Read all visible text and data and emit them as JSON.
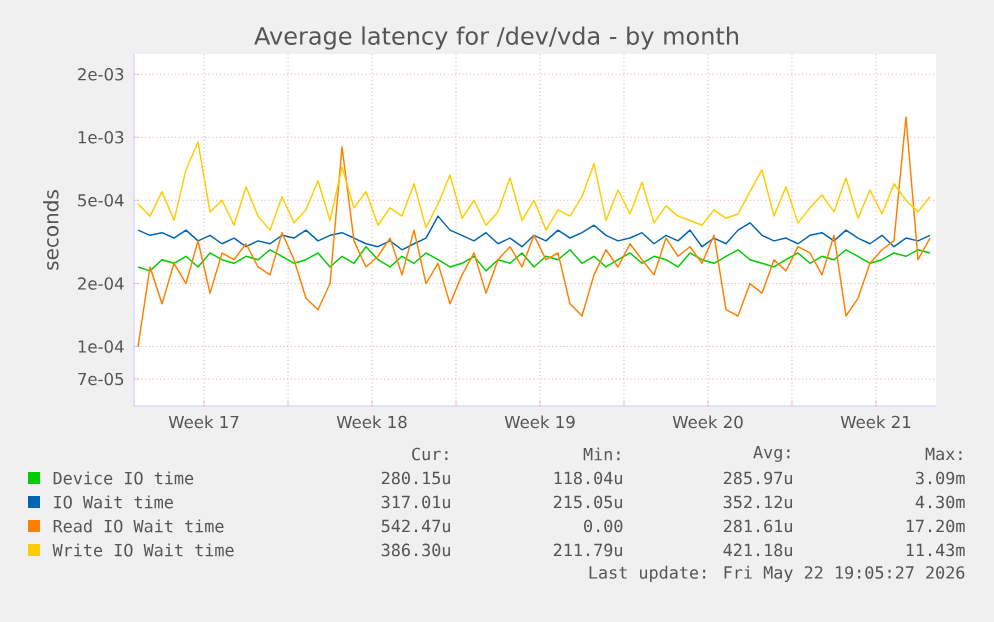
{
  "chart_data": {
    "type": "line",
    "title": "Average latency for /dev/vda - by month",
    "ylabel": "seconds",
    "log": true,
    "grid": true,
    "legend": "bottom",
    "xlim": [
      "2026-04-20T14:00",
      "2026-05-24T00:00"
    ],
    "ylim": [
      5.2e-05,
      0.0025
    ],
    "yticks": [
      {
        "value": 7e-05,
        "label": "7e-05"
      },
      {
        "value": 0.0001,
        "label": "1e-04"
      },
      {
        "value": 0.0002,
        "label": "2e-04"
      },
      {
        "value": 0.0005,
        "label": "5e-04"
      },
      {
        "value": 0.001,
        "label": "1e-03"
      },
      {
        "value": 0.002,
        "label": "2e-03"
      }
    ],
    "xticks": [
      {
        "value": "2026-04-23T12:00",
        "label": "Week 17"
      },
      {
        "value": "2026-04-27T00:00",
        "label": null
      },
      {
        "value": "2026-04-30T12:00",
        "label": "Week 18"
      },
      {
        "value": "2026-05-04T00:00",
        "label": null
      },
      {
        "value": "2026-05-07T12:00",
        "label": "Week 19"
      },
      {
        "value": "2026-05-11T00:00",
        "label": null
      },
      {
        "value": "2026-05-14T12:00",
        "label": "Week 20"
      },
      {
        "value": "2026-05-18T00:00",
        "label": null
      },
      {
        "value": "2026-05-21T12:00",
        "label": "Week 21"
      }
    ],
    "x": [
      "2026-04-20T18:00",
      "2026-04-21T06:00",
      "2026-04-21T18:00",
      "2026-04-22T06:00",
      "2026-04-22T18:00",
      "2026-04-23T06:00",
      "2026-04-23T18:00",
      "2026-04-24T06:00",
      "2026-04-24T18:00",
      "2026-04-25T06:00",
      "2026-04-25T18:00",
      "2026-04-26T06:00",
      "2026-04-26T18:00",
      "2026-04-27T06:00",
      "2026-04-27T18:00",
      "2026-04-28T06:00",
      "2026-04-28T18:00",
      "2026-04-29T06:00",
      "2026-04-29T18:00",
      "2026-04-30T06:00",
      "2026-04-30T18:00",
      "2026-05-01T06:00",
      "2026-05-01T18:00",
      "2026-05-02T06:00",
      "2026-05-02T18:00",
      "2026-05-03T06:00",
      "2026-05-03T18:00",
      "2026-05-04T06:00",
      "2026-05-04T18:00",
      "2026-05-05T06:00",
      "2026-05-05T18:00",
      "2026-05-06T06:00",
      "2026-05-06T18:00",
      "2026-05-07T06:00",
      "2026-05-07T18:00",
      "2026-05-08T06:00",
      "2026-05-08T18:00",
      "2026-05-09T06:00",
      "2026-05-09T18:00",
      "2026-05-10T06:00",
      "2026-05-10T18:00",
      "2026-05-11T06:00",
      "2026-05-11T18:00",
      "2026-05-12T06:00",
      "2026-05-12T18:00",
      "2026-05-13T06:00",
      "2026-05-13T18:00",
      "2026-05-14T06:00",
      "2026-05-14T18:00",
      "2026-05-15T06:00",
      "2026-05-15T18:00",
      "2026-05-16T06:00",
      "2026-05-16T18:00",
      "2026-05-17T06:00",
      "2026-05-17T18:00",
      "2026-05-18T06:00",
      "2026-05-18T18:00",
      "2026-05-19T06:00",
      "2026-05-19T18:00",
      "2026-05-20T06:00",
      "2026-05-20T18:00",
      "2026-05-21T06:00",
      "2026-05-21T18:00",
      "2026-05-22T06:00",
      "2026-05-22T18:00",
      "2026-05-23T06:00",
      "2026-05-23T18:00"
    ],
    "series": [
      {
        "name": "Device IO time",
        "color": "#00cc00",
        "values": [
          0.00024,
          0.00023,
          0.00026,
          0.00025,
          0.00027,
          0.00024,
          0.00028,
          0.00026,
          0.00025,
          0.00027,
          0.00026,
          0.00029,
          0.00027,
          0.00025,
          0.00026,
          0.00028,
          0.00024,
          0.00027,
          0.00025,
          0.0003,
          0.00026,
          0.00024,
          0.00027,
          0.00025,
          0.00028,
          0.00026,
          0.00024,
          0.00025,
          0.00027,
          0.00023,
          0.00026,
          0.00025,
          0.00028,
          0.00024,
          0.00027,
          0.00026,
          0.00029,
          0.00025,
          0.00027,
          0.00024,
          0.00026,
          0.00028,
          0.00025,
          0.00027,
          0.00026,
          0.00024,
          0.00028,
          0.00026,
          0.00025,
          0.00027,
          0.00029,
          0.00026,
          0.00025,
          0.00024,
          0.00026,
          0.00028,
          0.00025,
          0.00027,
          0.00026,
          0.00029,
          0.00027,
          0.00025,
          0.00026,
          0.00028,
          0.00027,
          0.00029,
          0.00028
        ]
      },
      {
        "name": "IO Wait time",
        "color": "#0066b3",
        "values": [
          0.00036,
          0.00034,
          0.00035,
          0.00033,
          0.00036,
          0.00032,
          0.00034,
          0.00031,
          0.00033,
          0.0003,
          0.00032,
          0.00031,
          0.00034,
          0.00033,
          0.00036,
          0.00032,
          0.00034,
          0.00035,
          0.00033,
          0.00031,
          0.0003,
          0.00032,
          0.00029,
          0.00031,
          0.00033,
          0.00042,
          0.00036,
          0.00034,
          0.00032,
          0.00035,
          0.00031,
          0.00033,
          0.0003,
          0.00034,
          0.00032,
          0.00036,
          0.00033,
          0.00035,
          0.00038,
          0.00034,
          0.00032,
          0.00033,
          0.00035,
          0.00031,
          0.00034,
          0.00032,
          0.00036,
          0.0003,
          0.00033,
          0.00031,
          0.00036,
          0.00039,
          0.00034,
          0.00032,
          0.00033,
          0.00031,
          0.00034,
          0.00035,
          0.00032,
          0.00036,
          0.00033,
          0.00031,
          0.00034,
          0.0003,
          0.00033,
          0.00032,
          0.00034
        ]
      },
      {
        "name": "Read IO Wait time",
        "color": "#ff8000",
        "values": [
          0.0001,
          0.00024,
          0.00016,
          0.00025,
          0.0002,
          0.00032,
          0.00018,
          0.00028,
          0.00026,
          0.00031,
          0.00024,
          0.00022,
          0.00035,
          0.00026,
          0.00017,
          0.00015,
          0.0002,
          0.0009,
          0.00032,
          0.00024,
          0.00027,
          0.00033,
          0.00022,
          0.00036,
          0.0002,
          0.00025,
          0.00016,
          0.00022,
          0.00028,
          0.00018,
          0.00026,
          0.0003,
          0.00024,
          0.00034,
          0.00026,
          0.00028,
          0.00016,
          0.00014,
          0.00022,
          0.00029,
          0.00024,
          0.00031,
          0.00026,
          0.00022,
          0.00033,
          0.00027,
          0.0003,
          0.00025,
          0.00034,
          0.00015,
          0.00014,
          0.0002,
          0.00018,
          0.00026,
          0.00023,
          0.0003,
          0.00028,
          0.00022,
          0.00034,
          0.00014,
          0.00017,
          0.00025,
          0.00029,
          0.00032,
          0.00125,
          0.00026,
          0.00033
        ]
      },
      {
        "name": "Write IO Wait time",
        "color": "#ffcc00",
        "values": [
          0.00048,
          0.00042,
          0.00055,
          0.0004,
          0.0007,
          0.00095,
          0.00044,
          0.0005,
          0.00038,
          0.00058,
          0.00042,
          0.00036,
          0.00052,
          0.00039,
          0.00045,
          0.00062,
          0.0004,
          0.00072,
          0.00046,
          0.00055,
          0.00038,
          0.00046,
          0.00042,
          0.0006,
          0.00037,
          0.00048,
          0.00066,
          0.00041,
          0.0005,
          0.00038,
          0.00044,
          0.00064,
          0.0004,
          0.0005,
          0.00036,
          0.00045,
          0.00042,
          0.00052,
          0.00075,
          0.0004,
          0.00056,
          0.00043,
          0.00061,
          0.00039,
          0.00047,
          0.00042,
          0.0004,
          0.00038,
          0.00045,
          0.00041,
          0.00043,
          0.00055,
          0.0007,
          0.00042,
          0.00058,
          0.00039,
          0.00046,
          0.00053,
          0.00044,
          0.00064,
          0.00041,
          0.00056,
          0.00043,
          0.0006,
          0.0005,
          0.00044,
          0.00052
        ]
      }
    ],
    "annotations": [
      "Cur:",
      "Min:",
      "Avg:",
      "Max:",
      "280.15u",
      "118.04u",
      "285.97u",
      "3.09m",
      "317.01u",
      "215.05u",
      "352.12u",
      "4.30m",
      "542.47u",
      "0.00",
      "281.61u",
      "17.20m",
      "386.30u",
      "211.79u",
      "421.18u",
      "11.43m",
      "Last update: Fri May 22 19:05:27 2026"
    ]
  }
}
